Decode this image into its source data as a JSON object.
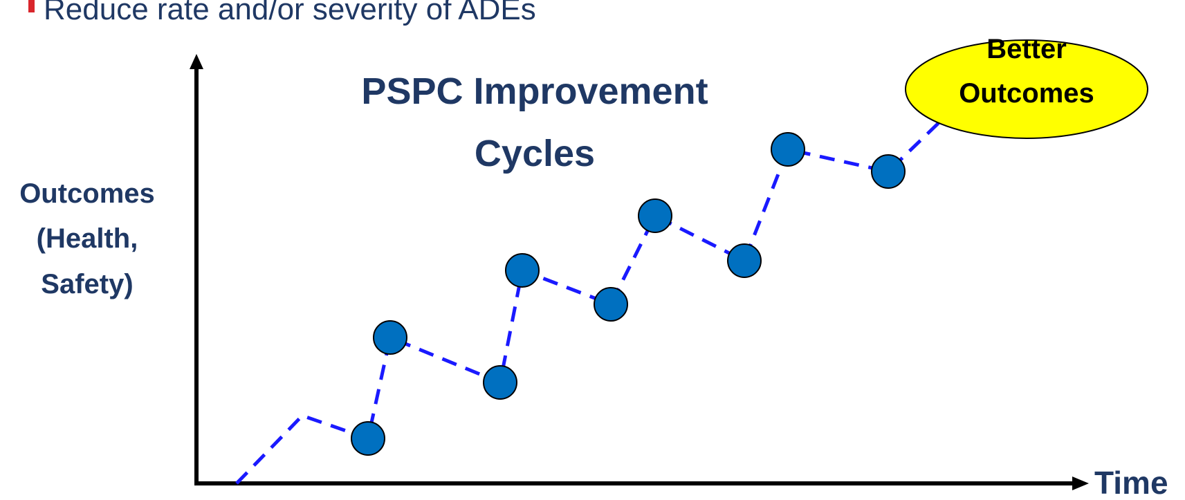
{
  "bullet": "Reduce rate and/or severity  of ADEs",
  "title": [
    "PSPC Improvement",
    "Cycles"
  ],
  "y_axis_label": [
    "Outcomes",
    "(Health,",
    "Safety)"
  ],
  "x_axis_label": "Time",
  "goal": [
    "Better",
    "Outcomes"
  ]
}
